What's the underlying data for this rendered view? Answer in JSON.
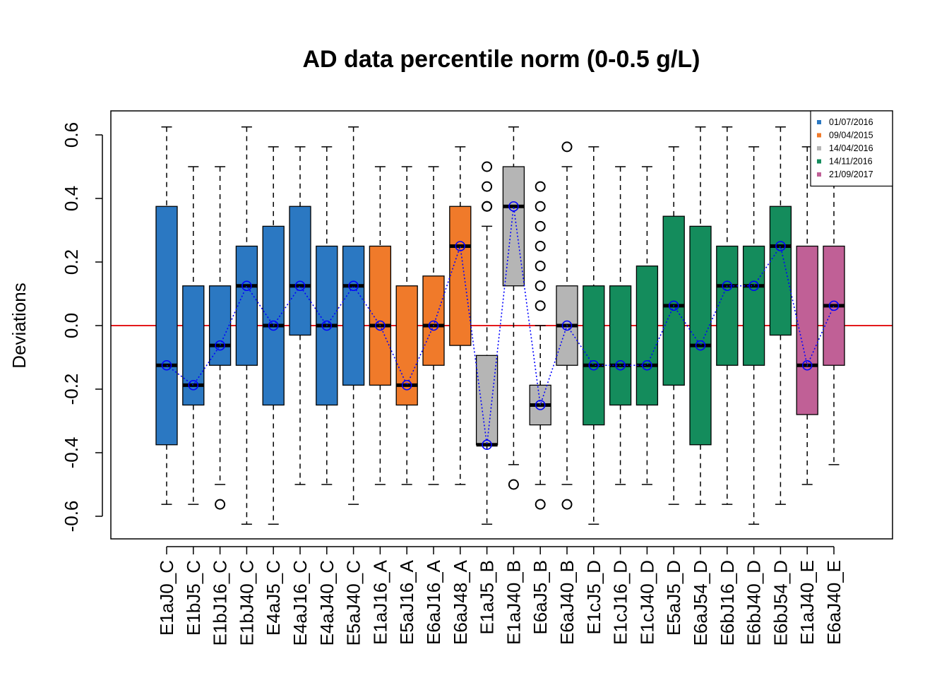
{
  "chart_data": {
    "type": "boxplot",
    "title": "AD data percentile norm (0-0.5 g/L)",
    "xlabel": "",
    "ylabel": "Deviations",
    "ylim": [
      -0.67,
      0.67
    ],
    "yticks": [
      -0.6,
      -0.4,
      -0.2,
      0.0,
      0.2,
      0.4,
      0.6
    ],
    "ytick_labels": [
      "-0.6",
      "-0.4",
      "-0.2",
      "0.0",
      "0.2",
      "0.4",
      "0.6"
    ],
    "reference_line": {
      "y": 0,
      "color": "#e41a1c"
    },
    "median_connector_color": "#0000ff",
    "legend": {
      "position": "top-right",
      "entries": [
        {
          "label": "01/07/2016",
          "color": "#2b78c2"
        },
        {
          "label": "09/04/2015",
          "color": "#f07a2a"
        },
        {
          "label": "14/04/2016",
          "color": "#b5b5b5"
        },
        {
          "label": "14/11/2016",
          "color": "#148c5c"
        },
        {
          "label": "21/09/2017",
          "color": "#c06096"
        }
      ]
    },
    "boxes": [
      {
        "label": "E1aJ0_C",
        "group": 0,
        "q1": -0.375,
        "median": -0.125,
        "q3": 0.375,
        "wlo": -0.5625,
        "whi": 0.625,
        "outliers": []
      },
      {
        "label": "E1bJ5_C",
        "group": 0,
        "q1": -0.25,
        "median": -0.1875,
        "q3": 0.125,
        "wlo": -0.5625,
        "whi": 0.5,
        "outliers": []
      },
      {
        "label": "E1bJ16_C",
        "group": 0,
        "q1": -0.125,
        "median": -0.0625,
        "q3": 0.125,
        "wlo": -0.5,
        "whi": 0.5,
        "outliers": [
          -0.5625
        ]
      },
      {
        "label": "E1bJ40_C",
        "group": 0,
        "q1": -0.125,
        "median": 0.125,
        "q3": 0.25,
        "wlo": -0.625,
        "whi": 0.625,
        "outliers": []
      },
      {
        "label": "E4aJ5_C",
        "group": 0,
        "q1": -0.25,
        "median": 0.0,
        "q3": 0.3125,
        "wlo": -0.625,
        "whi": 0.5625,
        "outliers": []
      },
      {
        "label": "E4aJ16_C",
        "group": 0,
        "q1": -0.03,
        "median": 0.125,
        "q3": 0.375,
        "wlo": -0.5,
        "whi": 0.5625,
        "outliers": []
      },
      {
        "label": "E4aJ40_C",
        "group": 0,
        "q1": -0.25,
        "median": 0.0,
        "q3": 0.25,
        "wlo": -0.5,
        "whi": 0.5625,
        "outliers": []
      },
      {
        "label": "E5aJ40_C",
        "group": 0,
        "q1": -0.1875,
        "median": 0.125,
        "q3": 0.25,
        "wlo": -0.5625,
        "whi": 0.625,
        "outliers": []
      },
      {
        "label": "E1aJ16_A",
        "group": 1,
        "q1": -0.1875,
        "median": 0.0,
        "q3": 0.25,
        "wlo": -0.5,
        "whi": 0.5,
        "outliers": []
      },
      {
        "label": "E5aJ16_A",
        "group": 1,
        "q1": -0.25,
        "median": -0.1875,
        "q3": 0.125,
        "wlo": -0.5,
        "whi": 0.5,
        "outliers": []
      },
      {
        "label": "E6aJ16_A",
        "group": 1,
        "q1": -0.125,
        "median": 0.0,
        "q3": 0.156,
        "wlo": -0.5,
        "whi": 0.5,
        "outliers": []
      },
      {
        "label": "E6aJ48_A",
        "group": 1,
        "q1": -0.0625,
        "median": 0.25,
        "q3": 0.375,
        "wlo": -0.5,
        "whi": 0.5625,
        "outliers": []
      },
      {
        "label": "E1aJ5_B",
        "group": 2,
        "q1": -0.375,
        "median": -0.375,
        "q3": -0.094,
        "wlo": -0.625,
        "whi": 0.3125,
        "outliers": [
          0.375,
          0.375,
          0.4375,
          0.5
        ]
      },
      {
        "label": "E1aJ40_B",
        "group": 2,
        "q1": 0.125,
        "median": 0.375,
        "q3": 0.5,
        "wlo": -0.4375,
        "whi": 0.625,
        "outliers": [
          -0.5
        ]
      },
      {
        "label": "E6aJ5_B",
        "group": 2,
        "q1": -0.3125,
        "median": -0.25,
        "q3": -0.1875,
        "wlo": -0.5,
        "whi": 0.0,
        "outliers": [
          0.0625,
          0.125,
          0.1875,
          0.25,
          0.3125,
          0.375,
          0.4375,
          -0.5625
        ]
      },
      {
        "label": "E6aJ40_B",
        "group": 2,
        "q1": -0.125,
        "median": 0.0,
        "q3": 0.125,
        "wlo": -0.5,
        "whi": 0.5,
        "outliers": [
          0.5625,
          -0.5625
        ]
      },
      {
        "label": "E1cJ5_D",
        "group": 3,
        "q1": -0.3125,
        "median": -0.125,
        "q3": 0.125,
        "wlo": -0.625,
        "whi": 0.5625,
        "outliers": []
      },
      {
        "label": "E1cJ16_D",
        "group": 3,
        "q1": -0.25,
        "median": -0.125,
        "q3": 0.125,
        "wlo": -0.5,
        "whi": 0.5,
        "outliers": []
      },
      {
        "label": "E1cJ40_D",
        "group": 3,
        "q1": -0.25,
        "median": -0.125,
        "q3": 0.1875,
        "wlo": -0.5,
        "whi": 0.5,
        "outliers": []
      },
      {
        "label": "E5aJ5_D",
        "group": 3,
        "q1": -0.1875,
        "median": 0.0625,
        "q3": 0.344,
        "wlo": -0.5625,
        "whi": 0.5625,
        "outliers": []
      },
      {
        "label": "E6aJ54_D",
        "group": 3,
        "q1": -0.375,
        "median": -0.0625,
        "q3": 0.3125,
        "wlo": -0.5625,
        "whi": 0.625,
        "outliers": []
      },
      {
        "label": "E6bJ16_D",
        "group": 3,
        "q1": -0.125,
        "median": 0.125,
        "q3": 0.25,
        "wlo": -0.5625,
        "whi": 0.625,
        "outliers": []
      },
      {
        "label": "E6bJ40_D",
        "group": 3,
        "q1": -0.125,
        "median": 0.125,
        "q3": 0.25,
        "wlo": -0.625,
        "whi": 0.5625,
        "outliers": []
      },
      {
        "label": "E6bJ54_D",
        "group": 3,
        "q1": -0.03,
        "median": 0.25,
        "q3": 0.375,
        "wlo": -0.5625,
        "whi": 0.625,
        "outliers": []
      },
      {
        "label": "E1aJ40_E",
        "group": 4,
        "q1": -0.28,
        "median": -0.125,
        "q3": 0.25,
        "wlo": -0.5,
        "whi": 0.5625,
        "outliers": []
      },
      {
        "label": "E6aJ40_E",
        "group": 4,
        "q1": -0.125,
        "median": 0.0625,
        "q3": 0.25,
        "wlo": -0.4375,
        "whi": 0.5625,
        "outliers": []
      }
    ]
  }
}
